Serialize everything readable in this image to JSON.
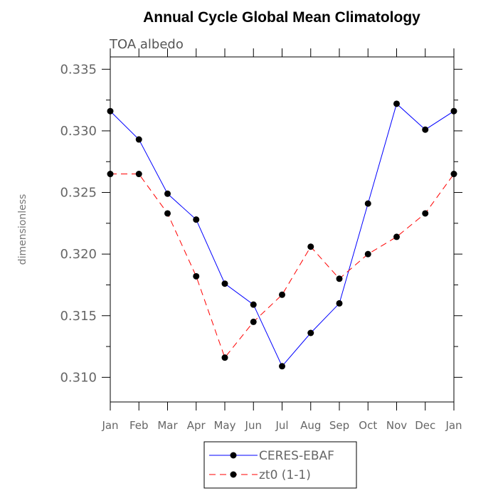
{
  "chart_data": {
    "type": "line",
    "title": "Annual Cycle Global Mean Climatology",
    "subtitle": "TOA albedo",
    "ylabel": "dimensionless",
    "xlabel": "",
    "categories": [
      "Jan",
      "Feb",
      "Mar",
      "Apr",
      "May",
      "Jun",
      "Jul",
      "Aug",
      "Sep",
      "Oct",
      "Nov",
      "Dec",
      "Jan"
    ],
    "ylim": [
      0.308,
      0.336
    ],
    "yticks": [
      0.31,
      0.315,
      0.32,
      0.325,
      0.33,
      0.335
    ],
    "ytick_labels": [
      "0.310",
      "0.315",
      "0.320",
      "0.325",
      "0.330",
      "0.335"
    ],
    "grid": false,
    "legend_position": "bottom-center",
    "series": [
      {
        "name": "CERES-EBAF",
        "color": "#0000ff",
        "line_style": "solid",
        "marker": "filled-circle",
        "values": [
          0.3316,
          0.3293,
          0.3249,
          0.3228,
          0.3176,
          0.3159,
          0.3109,
          0.3136,
          0.316,
          0.3241,
          0.3322,
          0.3301,
          0.3316
        ]
      },
      {
        "name": "zt0 (1-1)",
        "color": "#ff0000",
        "line_style": "dashed",
        "marker": "filled-circle",
        "values": [
          0.3265,
          0.3265,
          0.3233,
          0.3182,
          0.3116,
          0.3145,
          0.3167,
          0.3206,
          0.318,
          0.32,
          0.3214,
          0.3233,
          0.3265
        ]
      }
    ]
  }
}
